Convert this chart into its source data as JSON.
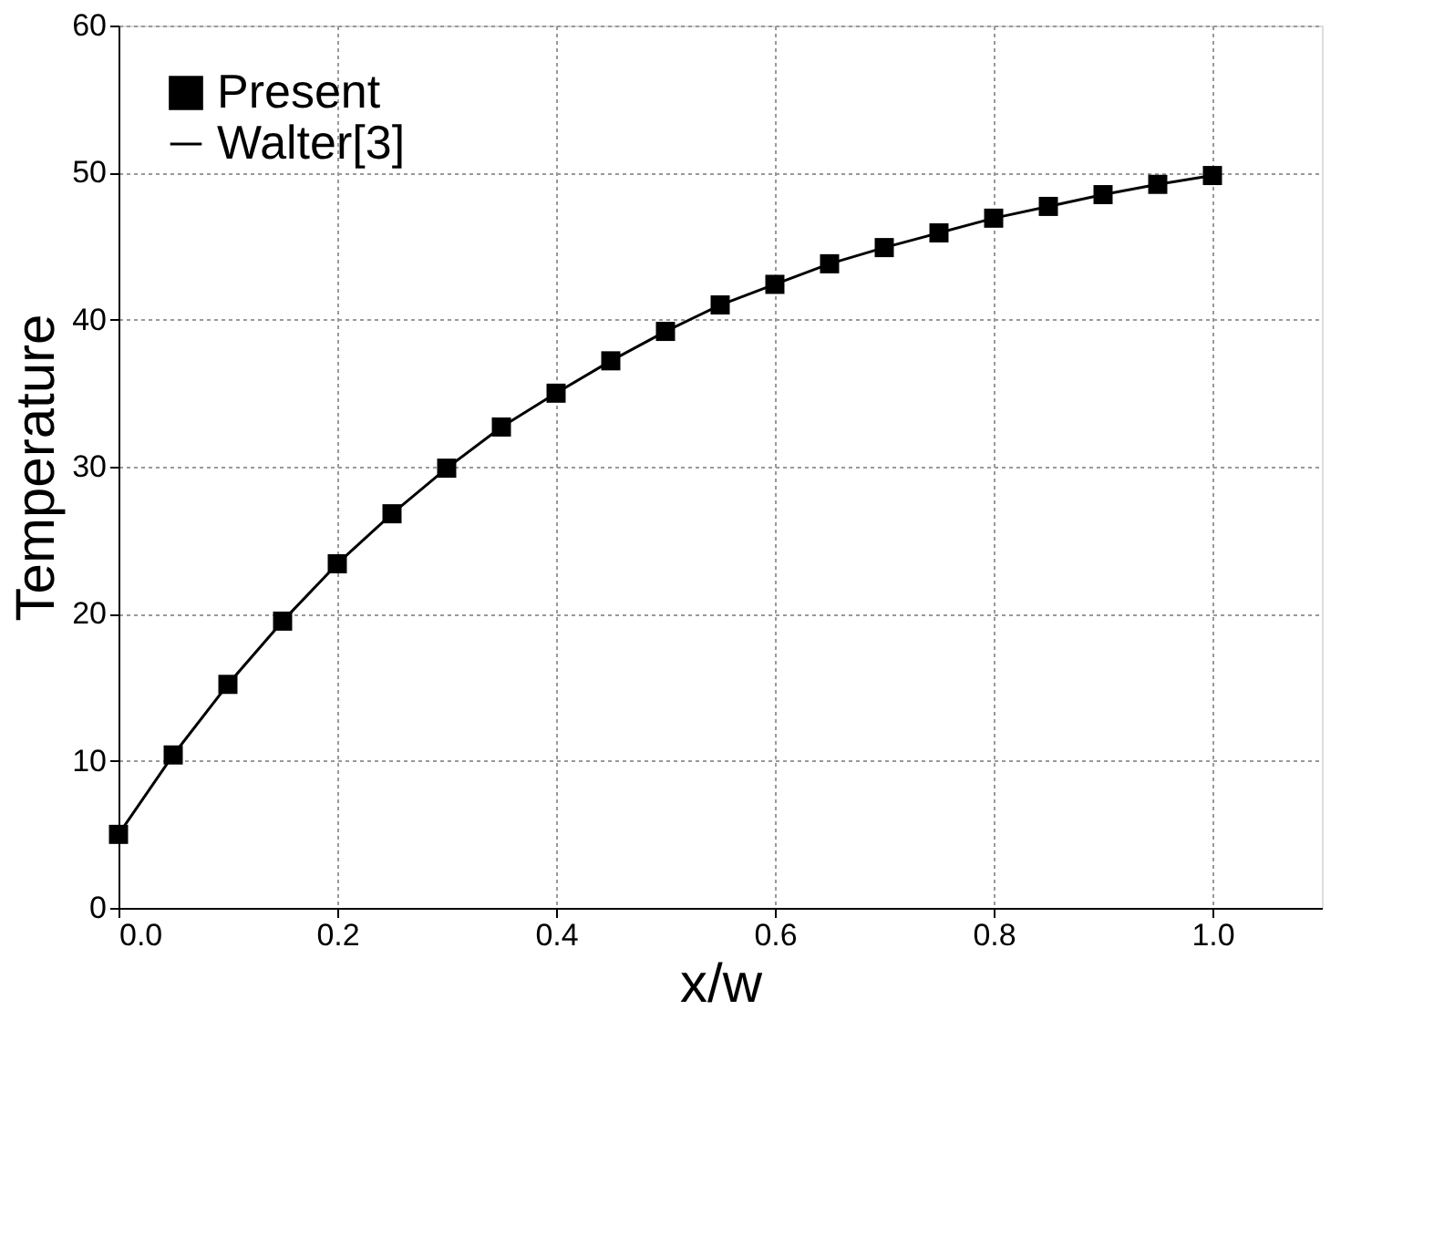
{
  "chart_data": {
    "type": "line",
    "xlabel": "x/w",
    "ylabel": "Temperature",
    "x": [
      0,
      0.05,
      0.1,
      0.15,
      0.2,
      0.25,
      0.3,
      0.35,
      0.4,
      0.45,
      0.5,
      0.55,
      0.6,
      0.65,
      0.7,
      0.75,
      0.8,
      0.85,
      0.9,
      0.95,
      1.0
    ],
    "series": [
      {
        "name": "Present",
        "type": "scatter",
        "color": "#000000",
        "marker": "square",
        "values": [
          5.0,
          10.4,
          15.2,
          19.5,
          23.4,
          26.8,
          29.9,
          32.7,
          35.0,
          37.2,
          39.2,
          41.0,
          42.4,
          43.8,
          44.9,
          45.9,
          46.9,
          47.7,
          48.5,
          49.2,
          49.8
        ]
      },
      {
        "name": "Walter[3]",
        "color": "#000000",
        "line_style": "solid",
        "values": [
          5.0,
          10.4,
          15.2,
          19.5,
          23.4,
          26.8,
          29.9,
          32.7,
          35.0,
          37.2,
          39.2,
          41.0,
          42.4,
          43.8,
          44.9,
          45.9,
          46.9,
          47.7,
          48.5,
          49.2,
          49.8
        ]
      }
    ],
    "xlim": [
      0,
      1.1
    ],
    "xticks": [
      {
        "value": 0,
        "label": "0.0"
      },
      0.2,
      0.4,
      0.6,
      0.8,
      {
        "value": 1,
        "label": "1.0"
      }
    ],
    "ylim": [
      0,
      60
    ],
    "yticks": [
      0,
      10,
      20,
      30,
      40,
      50,
      60
    ],
    "grid": true,
    "legend": "top left"
  }
}
